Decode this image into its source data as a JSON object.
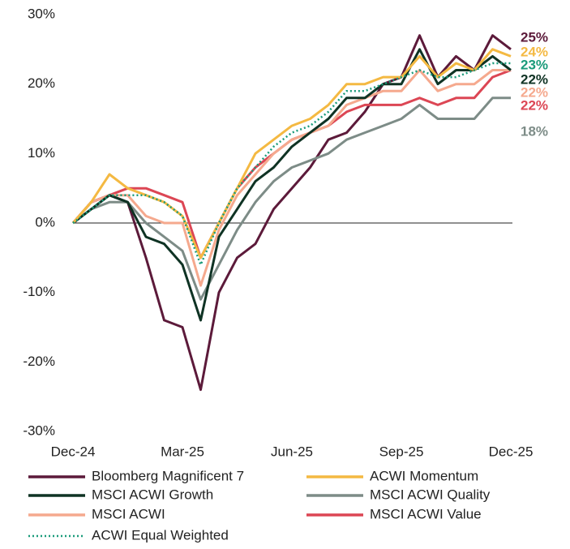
{
  "chart_data": {
    "type": "line",
    "x": [
      0,
      0.5,
      1,
      1.5,
      2,
      2.5,
      3,
      3.5,
      4,
      4.5,
      5,
      5.5,
      6,
      6.5,
      7,
      7.5,
      8,
      8.5,
      9,
      9.5,
      10,
      10.5,
      11,
      11.5,
      12
    ],
    "xlim": [
      0,
      12
    ],
    "xticks": [
      {
        "value": 0,
        "label": "Dec-24"
      },
      {
        "value": 3,
        "label": "Mar-25"
      },
      {
        "value": 6,
        "label": "Jun-25"
      },
      {
        "value": 9,
        "label": "Sep-25"
      },
      {
        "value": 12,
        "label": "Dec-25"
      }
    ],
    "ylim": [
      -30,
      30
    ],
    "yticks": [
      {
        "value": -30,
        "label": "-30%"
      },
      {
        "value": -20,
        "label": "-20%"
      },
      {
        "value": -10,
        "label": "-10%"
      },
      {
        "value": 0,
        "label": "0%"
      },
      {
        "value": 10,
        "label": "10%"
      },
      {
        "value": 20,
        "label": "20%"
      },
      {
        "value": 30,
        "label": "30%"
      }
    ],
    "series": [
      {
        "name": "Bloomberg Magnificent 7",
        "color": "#5c1a3a",
        "end_label": "25%",
        "values": [
          0,
          3,
          4,
          3,
          -5,
          -14,
          -15,
          -24,
          -10,
          -5,
          -3,
          2,
          5,
          8,
          12,
          13,
          16,
          20,
          21,
          27,
          21,
          24,
          22,
          27,
          25
        ]
      },
      {
        "name": "ACWI Momentum",
        "color": "#f4b942",
        "end_label": "24%",
        "values": [
          0,
          3,
          7,
          5,
          4,
          3,
          1,
          -5,
          0,
          5,
          10,
          12,
          14,
          15,
          17,
          20,
          20,
          21,
          21,
          24,
          21,
          23,
          22,
          25,
          24
        ]
      },
      {
        "name": "MSCI ACWI Growth",
        "color": "#0f3324",
        "end_label": "22%",
        "values": [
          0,
          2,
          4,
          3,
          -2,
          -3,
          -6,
          -14,
          -2,
          2,
          6,
          8,
          11,
          13,
          15,
          18,
          18,
          20,
          20,
          25,
          20,
          22,
          22,
          24,
          22
        ]
      },
      {
        "name": "MSCI ACWI Quality",
        "color": "#7d8c87",
        "end_label": "18%",
        "values": [
          0,
          2,
          3,
          3,
          0,
          -2,
          -4,
          -11,
          -6,
          -1,
          3,
          6,
          8,
          9,
          10,
          12,
          13,
          14,
          15,
          17,
          15,
          15,
          15,
          18,
          18
        ]
      },
      {
        "name": "MSCI ACWI",
        "color": "#f5a98e",
        "end_label": "22%",
        "values": [
          0,
          3,
          4,
          4,
          1,
          0,
          0,
          -9,
          -1,
          4,
          7,
          10,
          12,
          13,
          14,
          17,
          18,
          19,
          19,
          22,
          19,
          20,
          20,
          22,
          22
        ]
      },
      {
        "name": "MSCI ACWI Value",
        "color": "#dc4654",
        "end_label": "22%",
        "values": [
          0,
          3,
          4,
          5,
          5,
          4,
          3,
          -5,
          0,
          5,
          8,
          10,
          12,
          13,
          14,
          16,
          17,
          17,
          17,
          18,
          17,
          18,
          18,
          21,
          22
        ]
      },
      {
        "name": "ACWI Equal Weighted",
        "color": "#1a9b7a",
        "dashed": true,
        "end_label": "23%",
        "values": [
          0,
          2,
          4,
          4,
          4,
          3,
          1,
          -6,
          0,
          5,
          8,
          11,
          13,
          14,
          16,
          19,
          19,
          20,
          21,
          22,
          21,
          21,
          22,
          23,
          23
        ]
      }
    ]
  }
}
